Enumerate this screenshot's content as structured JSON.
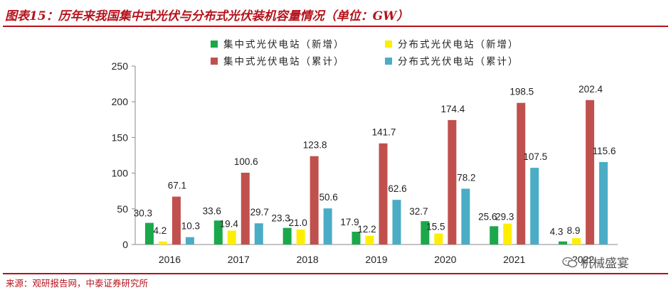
{
  "title": "图表15：历年来我国集中式光伏与分布式光伏装机容量情况（单位：GW）",
  "source": "来源：观研报告网，中泰证券研究所",
  "watermark": "机械盛宴",
  "chart_data": {
    "type": "bar",
    "title": "",
    "xlabel": "",
    "ylabel": "",
    "ylim": [
      0,
      250
    ],
    "yticks": [
      "0",
      "50",
      "100",
      "150",
      "200",
      "250"
    ],
    "categories": [
      "2016",
      "2017",
      "2018",
      "2019",
      "2020",
      "2021",
      "2022"
    ],
    "legend_position": "top",
    "series": [
      {
        "name": "集中式光伏电站（新增）",
        "color": "#1aa84a",
        "values": [
          30.3,
          33.6,
          23.3,
          17.9,
          32.7,
          25.6,
          4.3
        ],
        "labels": [
          "30.3",
          "33.6",
          "23.3",
          "17.9",
          "32.7",
          "25.6",
          "4.3"
        ]
      },
      {
        "name": "分布式光伏电站（新增）",
        "color": "#ffee00",
        "values": [
          4.2,
          19.4,
          21.0,
          12.2,
          15.5,
          29.3,
          8.9
        ],
        "labels": [
          "4.2",
          "19.4",
          "21.0",
          "12.2",
          "15.5",
          "29.3",
          "8.9"
        ]
      },
      {
        "name": "集中式光伏电站（累计）",
        "color": "#c0504d",
        "values": [
          67.1,
          100.6,
          123.8,
          141.7,
          174.4,
          198.5,
          202.4
        ],
        "labels": [
          "67.1",
          "100.6",
          "123.8",
          "141.7",
          "174.4",
          "198.5",
          "202.4"
        ]
      },
      {
        "name": "分布式光伏电站（累计）",
        "color": "#4bacc6",
        "values": [
          10.3,
          29.7,
          50.6,
          62.6,
          78.2,
          107.5,
          115.6
        ],
        "labels": [
          "10.3",
          "29.7",
          "50.6",
          "62.6",
          "78.2",
          "107.5",
          "115.6"
        ]
      }
    ]
  }
}
